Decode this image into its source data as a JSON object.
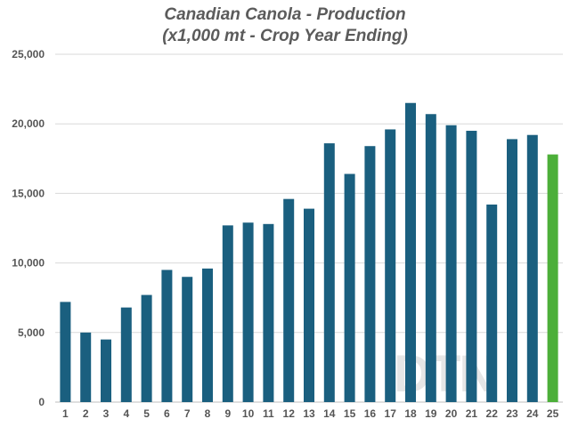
{
  "chart_data": {
    "type": "bar",
    "title": "Canadian Canola - Production",
    "subtitle": "(x1,000 mt - Crop Year Ending)",
    "xlabel": "",
    "ylabel": "",
    "categories": [
      "1",
      "2",
      "3",
      "4",
      "5",
      "6",
      "7",
      "8",
      "9",
      "10",
      "11",
      "12",
      "13",
      "14",
      "15",
      "16",
      "17",
      "18",
      "19",
      "20",
      "21",
      "22",
      "23",
      "24",
      "25"
    ],
    "values": [
      7200,
      5000,
      4500,
      6800,
      7700,
      9500,
      9000,
      9600,
      12700,
      12900,
      12800,
      14600,
      13900,
      18600,
      16400,
      18400,
      19600,
      21500,
      20700,
      19900,
      19500,
      14200,
      18900,
      19200,
      17800
    ],
    "ylim": [
      0,
      25000
    ],
    "yticks": [
      "0",
      "5,000",
      "10,000",
      "15,000",
      "20,000",
      "25,000"
    ],
    "ytick_values": [
      0,
      5000,
      10000,
      15000,
      20000,
      25000
    ],
    "grid": true,
    "legend": "none",
    "colors": {
      "bar": "#1a5f7f",
      "highlight": "#4caf39",
      "highlight_index": 24
    },
    "watermark": "DTN"
  }
}
